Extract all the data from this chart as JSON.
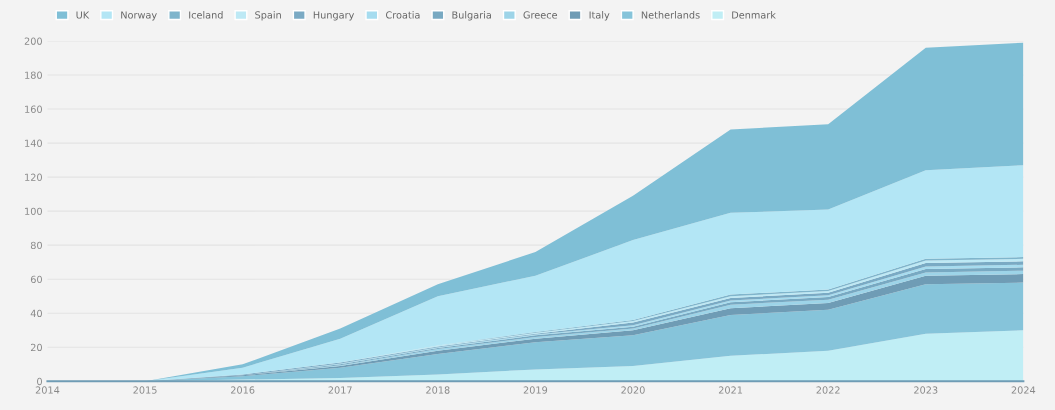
{
  "chart_data": {
    "type": "area",
    "stacked": true,
    "x": [
      2014,
      2015,
      2016,
      2017,
      2018,
      2019,
      2020,
      2021,
      2022,
      2023,
      2024
    ],
    "xlim": [
      2014,
      2024
    ],
    "xticks": [
      2014,
      2015,
      2016,
      2017,
      2018,
      2019,
      2020,
      2021,
      2022,
      2023,
      2024
    ],
    "ylim": [
      0,
      200
    ],
    "yticks": [
      0,
      20,
      40,
      60,
      80,
      100,
      120,
      140,
      160,
      180,
      200
    ],
    "grid": "y",
    "legend": "top left",
    "series": [
      {
        "name": "Denmark",
        "color": "#c0eef5",
        "values": [
          0,
          0,
          1,
          2,
          4,
          7,
          9,
          15,
          18,
          28,
          30
        ]
      },
      {
        "name": "Netherlands",
        "color": "#86c4da",
        "values": [
          0,
          0,
          2,
          6,
          12,
          16,
          18,
          24,
          24,
          29,
          28
        ]
      },
      {
        "name": "Italy",
        "color": "#6f9cb5",
        "values": [
          0,
          0,
          0.5,
          1,
          2,
          2,
          3,
          4,
          4,
          5,
          5
        ]
      },
      {
        "name": "Greece",
        "color": "#9dd4e8",
        "values": [
          0,
          0,
          0,
          0.5,
          1,
          1,
          1,
          2,
          2,
          2,
          2
        ]
      },
      {
        "name": "Bulgaria",
        "color": "#78a9c2",
        "values": [
          0,
          0,
          0,
          0.5,
          0.5,
          1,
          1,
          1.5,
          1.5,
          2,
          2
        ]
      },
      {
        "name": "Croatia",
        "color": "#a6dcef",
        "values": [
          0,
          0,
          0,
          0.5,
          0.5,
          0.5,
          1,
          1,
          1,
          1.5,
          1.5
        ]
      },
      {
        "name": "Hungary",
        "color": "#7aaac4",
        "values": [
          0,
          0,
          0.5,
          0.5,
          0.5,
          0.5,
          1.5,
          1.5,
          1.5,
          2,
          2
        ]
      },
      {
        "name": "Spain",
        "color": "#bde9f5",
        "values": [
          0,
          0,
          0,
          0,
          0.5,
          0.5,
          1,
          1,
          1,
          1.5,
          1.5
        ]
      },
      {
        "name": "Iceland",
        "color": "#7fb5cc",
        "values": [
          0,
          0,
          0,
          0,
          0,
          0.5,
          0.5,
          1,
          1,
          1,
          1
        ]
      },
      {
        "name": "Norway",
        "color": "#b3e6f5",
        "values": [
          0,
          0,
          4,
          14,
          29,
          33,
          47,
          48,
          47,
          52,
          54
        ]
      },
      {
        "name": "UK",
        "color": "#7fbfd6",
        "values": [
          0,
          0,
          2,
          6,
          7,
          14,
          26,
          49,
          50,
          72,
          72
        ]
      }
    ]
  }
}
